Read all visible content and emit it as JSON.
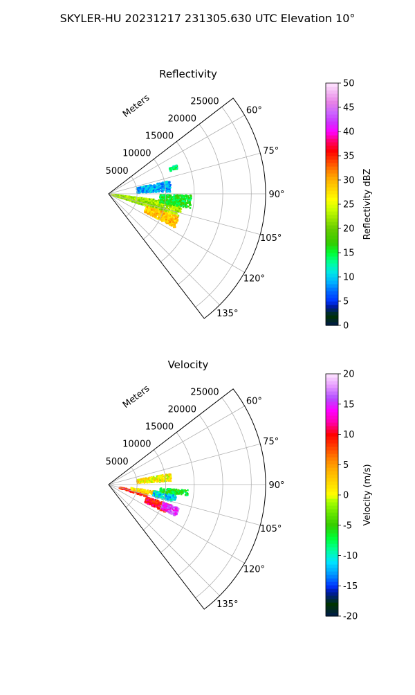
{
  "figure": {
    "title": "SKYLER-HU  20231217  231305.630 UTC Elevation 10°"
  },
  "chart_data": [
    {
      "type": "heatmap",
      "projection": "polar-sector",
      "title": "Reflectivity",
      "radial_axis_label": "Meters",
      "radial_ticks": [
        "5000",
        "10000",
        "15000",
        "20000",
        "25000"
      ],
      "r_max_m": 27500,
      "angle_ticks": [
        "60°",
        "75°",
        "90°",
        "105°",
        "120°",
        "135°"
      ],
      "theta_range_deg": [
        52.5,
        142.5
      ],
      "grid": true,
      "colorbar": {
        "label": "Reflectivity dBZ",
        "ticks": [
          "0",
          "5",
          "10",
          "15",
          "20",
          "25",
          "30",
          "35",
          "40",
          "45",
          "50"
        ],
        "range": [
          0,
          50
        ],
        "colormap": "NWSRef"
      },
      "echo_regions": [
        {
          "az": [
            97,
            108
          ],
          "r_m": [
            500,
            13000
          ],
          "value": 22
        },
        {
          "az": [
            108,
            117
          ],
          "r_m": [
            7000,
            13000
          ],
          "value": 29
        },
        {
          "az": [
            78,
            88
          ],
          "r_m": [
            5000,
            11000
          ],
          "value": 9
        },
        {
          "az": [
            91,
            100
          ],
          "r_m": [
            9000,
            14500
          ],
          "value": 16
        },
        {
          "az": [
            67,
            70
          ],
          "r_m": [
            11500,
            13000
          ],
          "value": 13
        }
      ]
    },
    {
      "type": "heatmap",
      "projection": "polar-sector",
      "title": "Velocity",
      "radial_axis_label": "Meters",
      "radial_ticks": [
        "5000",
        "10000",
        "15000",
        "20000",
        "25000"
      ],
      "r_max_m": 27500,
      "angle_ticks": [
        "60°",
        "75°",
        "90°",
        "105°",
        "120°",
        "135°"
      ],
      "theta_range_deg": [
        52.5,
        142.5
      ],
      "grid": true,
      "colorbar": {
        "label": "Velocity (m/s)",
        "ticks": [
          "-20",
          "-15",
          "-10",
          "-5",
          "0",
          "5",
          "10",
          "15",
          "20"
        ],
        "range": [
          -20,
          20
        ],
        "colormap": "NWSVel"
      },
      "echo_regions": [
        {
          "az": [
            103,
            108
          ],
          "r_m": [
            2000,
            7000
          ],
          "value": 9
        },
        {
          "az": [
            98,
            103
          ],
          "r_m": [
            4000,
            9000
          ],
          "value": 2
        },
        {
          "az": [
            98,
            105
          ],
          "r_m": [
            8000,
            12000
          ],
          "value": -11
        },
        {
          "az": [
            108,
            116
          ],
          "r_m": [
            7000,
            11000
          ],
          "value": 10
        },
        {
          "az": [
            108,
            115
          ],
          "r_m": [
            10000,
            13000
          ],
          "value": 15
        },
        {
          "az": [
            80,
            87
          ],
          "r_m": [
            5000,
            11000
          ],
          "value": 1
        },
        {
          "az": [
            94,
            98
          ],
          "r_m": [
            9000,
            14000
          ],
          "value": -6
        }
      ]
    }
  ]
}
